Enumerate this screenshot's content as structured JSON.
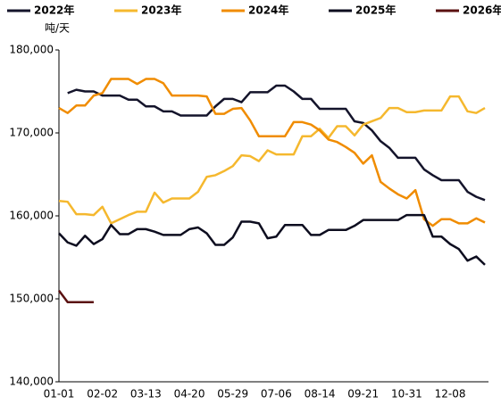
{
  "chart_data": {
    "type": "line",
    "y_unit": "吨/天",
    "categories": [
      "01-01",
      null,
      null,
      null,
      null,
      "02-02",
      null,
      null,
      null,
      null,
      "03-13",
      null,
      null,
      null,
      null,
      "04-20",
      null,
      null,
      null,
      null,
      "05-29",
      null,
      null,
      null,
      null,
      "07-06",
      null,
      null,
      null,
      null,
      "08-14",
      null,
      null,
      null,
      null,
      "09-21",
      null,
      null,
      null,
      null,
      "10-31",
      null,
      null,
      null,
      null,
      "12-08",
      null,
      null,
      null,
      null
    ],
    "series": [
      {
        "name": "2022年",
        "color": "#14142b",
        "values": [
          null,
          174800,
          175200,
          175000,
          175000,
          174500,
          174500,
          174500,
          174000,
          174000,
          173200,
          173200,
          172600,
          172600,
          172100,
          172100,
          172100,
          172100,
          173200,
          174100,
          174100,
          173700,
          174900,
          174900,
          174900,
          175700,
          175700,
          175000,
          174100,
          174100,
          172900,
          172900,
          172900,
          172900,
          171400,
          171200,
          170300,
          169000,
          168200,
          167000,
          167000,
          167000,
          165600,
          164900,
          164300,
          164300,
          164300,
          162900,
          162300,
          161900
        ]
      },
      {
        "name": "2023年",
        "color": "#f5b82e",
        "values": [
          161800,
          161700,
          160200,
          160200,
          160100,
          161100,
          159100,
          159600,
          160100,
          160500,
          160500,
          162800,
          161600,
          162100,
          162100,
          162100,
          162900,
          164700,
          164900,
          165400,
          166000,
          167300,
          167200,
          166600,
          167900,
          167400,
          167400,
          167400,
          169600,
          169600,
          170500,
          169400,
          170800,
          170800,
          169700,
          171000,
          171400,
          171800,
          173000,
          173000,
          172500,
          172500,
          172700,
          172700,
          172700,
          174400,
          174400,
          172600,
          172400,
          173000
        ]
      },
      {
        "name": "2024年",
        "color": "#f08c00",
        "values": [
          173000,
          172400,
          173300,
          173300,
          174500,
          174800,
          176500,
          176500,
          176500,
          175900,
          176500,
          176500,
          176000,
          174500,
          174500,
          174500,
          174500,
          174400,
          172300,
          172300,
          172900,
          173000,
          171500,
          169600,
          169600,
          169600,
          169600,
          171300,
          171300,
          171000,
          170300,
          169200,
          168900,
          168300,
          167600,
          166300,
          167300,
          164100,
          163300,
          162600,
          162100,
          163100,
          159600,
          158800,
          159600,
          159600,
          159100,
          159100,
          159700,
          159200
        ]
      },
      {
        "name": "2025年",
        "color": "#0d0d1f",
        "values": [
          157900,
          156800,
          156400,
          157600,
          156600,
          157200,
          158900,
          157800,
          157800,
          158400,
          158400,
          158100,
          157700,
          157700,
          157700,
          158400,
          158600,
          157900,
          156500,
          156500,
          157400,
          159300,
          159300,
          159100,
          157300,
          157500,
          158900,
          158900,
          158900,
          157700,
          157700,
          158300,
          158300,
          158300,
          158800,
          159500,
          159500,
          159500,
          159500,
          159500,
          160100,
          160100,
          160100,
          157500,
          157500,
          156600,
          156000,
          154600,
          155100,
          154100
        ]
      },
      {
        "name": "2026年",
        "color": "#5a1010",
        "values": [
          151000,
          149600,
          149600,
          149600,
          149600,
          null,
          null,
          null,
          null,
          null,
          null,
          null,
          null,
          null,
          null,
          null,
          null,
          null,
          null,
          null,
          null,
          null,
          null,
          null,
          null,
          null,
          null,
          null,
          null,
          null,
          null,
          null,
          null,
          null,
          null,
          null,
          null,
          null,
          null,
          null,
          null,
          null,
          null,
          null,
          null,
          null,
          null,
          null,
          null,
          null
        ]
      }
    ],
    "ylim": [
      140000,
      180000
    ],
    "yticks": [
      {
        "value": 140000,
        "label": "140,000"
      },
      {
        "value": 150000,
        "label": "150,000"
      },
      {
        "value": 160000,
        "label": "160,000"
      },
      {
        "value": 170000,
        "label": "170,000"
      },
      {
        "value": 180000,
        "label": "180,000"
      }
    ],
    "legend": "top"
  }
}
